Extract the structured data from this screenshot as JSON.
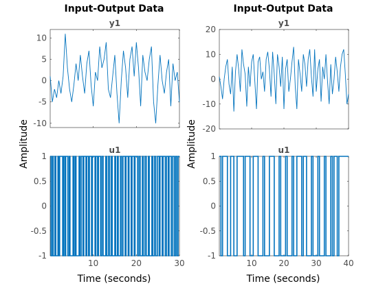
{
  "figure": {
    "y_axis_label": "Amplitude",
    "x_axis_label": "Time (seconds)",
    "line_color": "#0072BD"
  },
  "chart_data": [
    {
      "type": "line",
      "title": "Input-Output Data",
      "subtitle": "y1",
      "column": 0,
      "row": 0,
      "xlim": [
        0,
        30
      ],
      "ylim": [
        -11,
        12
      ],
      "yticks": [
        -10,
        -5,
        0,
        5,
        10
      ],
      "xticks": [],
      "series": [
        {
          "name": "y1",
          "x": [
            0,
            0.5,
            1,
            1.5,
            2,
            2.5,
            3,
            3.5,
            4,
            4.5,
            5,
            5.5,
            6,
            6.5,
            7,
            7.5,
            8,
            8.5,
            9,
            9.5,
            10,
            10.5,
            11,
            11.5,
            12,
            12.5,
            13,
            13.5,
            14,
            14.5,
            15,
            15.5,
            16,
            16.5,
            17,
            17.5,
            18,
            18.5,
            19,
            19.5,
            20,
            20.5,
            21,
            21.5,
            22,
            22.5,
            23,
            23.5,
            24,
            24.5,
            25,
            25.5,
            26,
            26.5,
            27,
            27.5,
            28,
            28.5,
            29,
            29.5,
            30
          ],
          "y": [
            1,
            -5,
            -2,
            -4,
            0,
            -3,
            1,
            11,
            3,
            -2,
            -5,
            -1,
            4,
            0,
            6,
            1,
            -3,
            4,
            7,
            -1,
            -6,
            2,
            0,
            8,
            3,
            5,
            9,
            -2,
            -4,
            1,
            6,
            -3,
            -10,
            0,
            7,
            3,
            -4,
            5,
            8,
            1,
            9,
            3,
            -6,
            6,
            2,
            0,
            5,
            8,
            -5,
            -10,
            -1,
            6,
            0,
            -3,
            2,
            5,
            -6,
            4,
            0,
            2,
            -5
          ]
        }
      ]
    },
    {
      "type": "line",
      "title": "",
      "subtitle": "u1",
      "column": 0,
      "row": 1,
      "xlim": [
        0,
        30
      ],
      "ylim": [
        -1,
        1
      ],
      "yticks": [
        -1,
        -0.5,
        0,
        0.5,
        1
      ],
      "xticks": [
        10,
        20,
        30
      ],
      "step": true,
      "series": [
        {
          "name": "u1",
          "switch_times": [
            0.2,
            0.5,
            0.7,
            1.1,
            1.3,
            1.8,
            2.0,
            2.2,
            2.9,
            3.1,
            3.4,
            3.6,
            4.1,
            4.4,
            4.6,
            5.3,
            5.5,
            5.8,
            6.0,
            6.7,
            6.9,
            7.2,
            7.6,
            7.8,
            8.3,
            8.5,
            8.9,
            9.1,
            9.6,
            9.8,
            10.4,
            10.6,
            11.0,
            11.2,
            11.7,
            12.0,
            12.3,
            12.9,
            13.1,
            13.5,
            13.8,
            14.2,
            14.4,
            15.0,
            15.2,
            15.6,
            15.8,
            16.3,
            16.6,
            16.9,
            17.4,
            17.6,
            18.1,
            18.3,
            18.8,
            19.0,
            19.5,
            19.7,
            20.3,
            20.6,
            20.9,
            21.4,
            21.6,
            22.0,
            22.3,
            22.8,
            23.0,
            23.6,
            23.8,
            24.2,
            24.5,
            24.9,
            25.3,
            25.5,
            26.0,
            26.2,
            26.7,
            27.0,
            27.4,
            27.6,
            28.1,
            28.4,
            28.8,
            29.1,
            29.4,
            29.7
          ],
          "initial": 1
        }
      ]
    },
    {
      "type": "line",
      "title": "Input-Output Data",
      "subtitle": "y1",
      "column": 1,
      "row": 0,
      "xlim": [
        0,
        40
      ],
      "ylim": [
        -20,
        20
      ],
      "yticks": [
        -20,
        -10,
        0,
        10,
        20
      ],
      "xticks": [],
      "series": [
        {
          "name": "y1",
          "x": [
            0,
            0.5,
            1,
            1.5,
            2,
            2.5,
            3,
            3.5,
            4,
            4.5,
            5,
            5.5,
            6,
            6.5,
            7,
            7.5,
            8,
            8.5,
            9,
            9.5,
            10,
            10.5,
            11,
            11.5,
            12,
            12.5,
            13,
            13.5,
            14,
            14.5,
            15,
            15.5,
            16,
            16.5,
            17,
            17.5,
            18,
            18.5,
            19,
            19.5,
            20,
            20.5,
            21,
            21.5,
            22,
            22.5,
            23,
            23.5,
            24,
            24.5,
            25,
            25.5,
            26,
            26.5,
            27,
            27.5,
            28,
            28.5,
            29,
            29.5,
            30,
            30.5,
            31,
            31.5,
            32,
            32.5,
            33,
            33.5,
            34,
            34.5,
            35,
            35.5,
            36,
            36.5,
            37,
            37.5,
            38,
            38.5,
            39,
            39.5,
            40
          ],
          "y": [
            1,
            -3,
            -8,
            0,
            5,
            8,
            -2,
            -6,
            5,
            -13,
            3,
            10,
            4,
            -5,
            12,
            6,
            2,
            -11,
            5,
            -3,
            7,
            10,
            -1,
            -12,
            7,
            9,
            0,
            3,
            -5,
            8,
            11,
            4,
            -7,
            11,
            2,
            -10,
            10,
            5,
            -3,
            9,
            -12,
            4,
            8,
            -5,
            0,
            7,
            13,
            -3,
            -12,
            8,
            2,
            -5,
            10,
            6,
            -3,
            8,
            12,
            1,
            -7,
            12,
            -5,
            4,
            8,
            -9,
            5,
            0,
            10,
            -1,
            -10,
            6,
            -6,
            0,
            9,
            3,
            -5,
            5,
            10,
            12,
            2,
            -10,
            -6
          ]
        }
      ]
    },
    {
      "type": "line",
      "title": "",
      "subtitle": "u1",
      "column": 1,
      "row": 1,
      "xlim": [
        0,
        40
      ],
      "ylim": [
        -1,
        1
      ],
      "yticks": [
        -1,
        -0.5,
        0,
        0.5,
        1
      ],
      "xticks": [
        10,
        20,
        30,
        40
      ],
      "step": true,
      "series": [
        {
          "name": "u1",
          "switch_times": [
            0.5,
            1.0,
            2.5,
            3.5,
            4.5,
            5.5,
            7.5,
            8.0,
            9.5,
            10.5,
            12.0,
            13.5,
            14.0,
            15.5,
            17.0,
            18.5,
            19.0,
            20.5,
            21.0,
            22.5,
            23.0,
            24.0,
            25.5,
            26.0,
            27.0,
            28.5,
            29.0,
            30.5,
            31.0,
            32.5,
            33.0,
            34.5,
            35.0,
            35.5,
            36.5,
            37.0
          ],
          "initial": 1
        }
      ]
    }
  ]
}
